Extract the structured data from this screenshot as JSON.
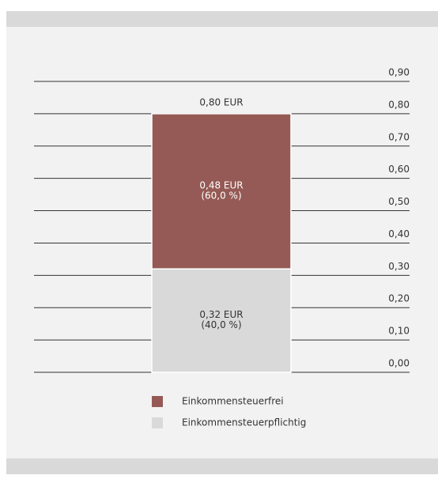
{
  "chart_data": {
    "type": "stacked_bar",
    "categories": [
      null
    ],
    "series": [
      {
        "name": "Einkommensteuerfrei",
        "color": "#955a55",
        "values": [
          0.48
        ],
        "value_labels": [
          "0,48 EUR"
        ],
        "percent_labels": [
          "(60,0 %)"
        ]
      },
      {
        "name": "Einkommensteuerpflichtig",
        "color": "#d9d9d9",
        "values": [
          0.32
        ],
        "value_labels": [
          "0,32 EUR"
        ],
        "percent_labels": [
          "(40,0 %)"
        ]
      }
    ],
    "total_labels": [
      "0,80 EUR"
    ],
    "ylim": [
      0,
      0.9
    ],
    "yticks": [
      {
        "value": 0,
        "label": "0,00"
      },
      {
        "value": 0.1,
        "label": "0,10"
      },
      {
        "value": 0.2,
        "label": "0,20"
      },
      {
        "value": 0.3,
        "label": "0,30"
      },
      {
        "value": 0.4,
        "label": "0,40"
      },
      {
        "value": 0.5,
        "label": "0,50"
      },
      {
        "value": 0.6,
        "label": "0,60"
      },
      {
        "value": 0.7,
        "label": "0,70"
      },
      {
        "value": 0.8,
        "label": "0,80"
      },
      {
        "value": 0.9,
        "label": "0,90"
      }
    ],
    "grid": true
  }
}
